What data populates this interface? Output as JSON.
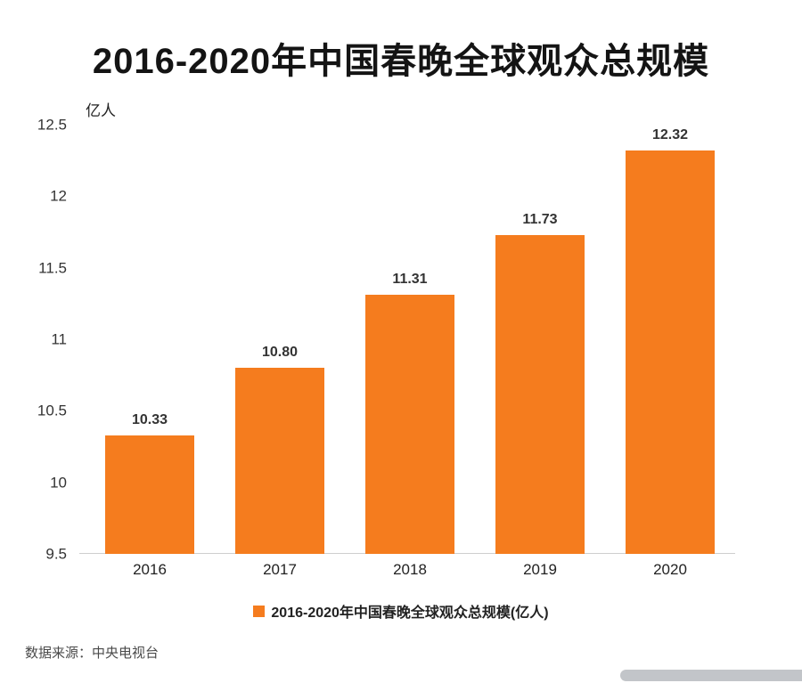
{
  "title": "2016-2020年中国春晚全球观众总规模",
  "source": "数据来源：中央电视台",
  "chart_data": {
    "type": "bar",
    "title": "2016-2020年中国春晚全球观众总规模",
    "unit_label": "亿人",
    "categories": [
      "2016",
      "2017",
      "2018",
      "2019",
      "2020"
    ],
    "values": [
      10.33,
      10.8,
      11.31,
      11.73,
      12.32
    ],
    "value_labels": [
      "10.33",
      "10.80",
      "11.31",
      "11.73",
      "12.32"
    ],
    "yticks": [
      9.5,
      10,
      10.5,
      11,
      11.5,
      12,
      12.5
    ],
    "ytick_labels": [
      "9.5",
      "10",
      "10.5",
      "11",
      "11.5",
      "12",
      "12.5"
    ],
    "ylim": [
      9.5,
      12.5
    ],
    "xlabel": "",
    "ylabel": "亿人",
    "legend": "2016-2020年中国春晚全球观众总规模(亿人)",
    "legend_position": "bottom",
    "grid": false,
    "bar_color": "#F57C1E",
    "label_color": "#333333"
  }
}
